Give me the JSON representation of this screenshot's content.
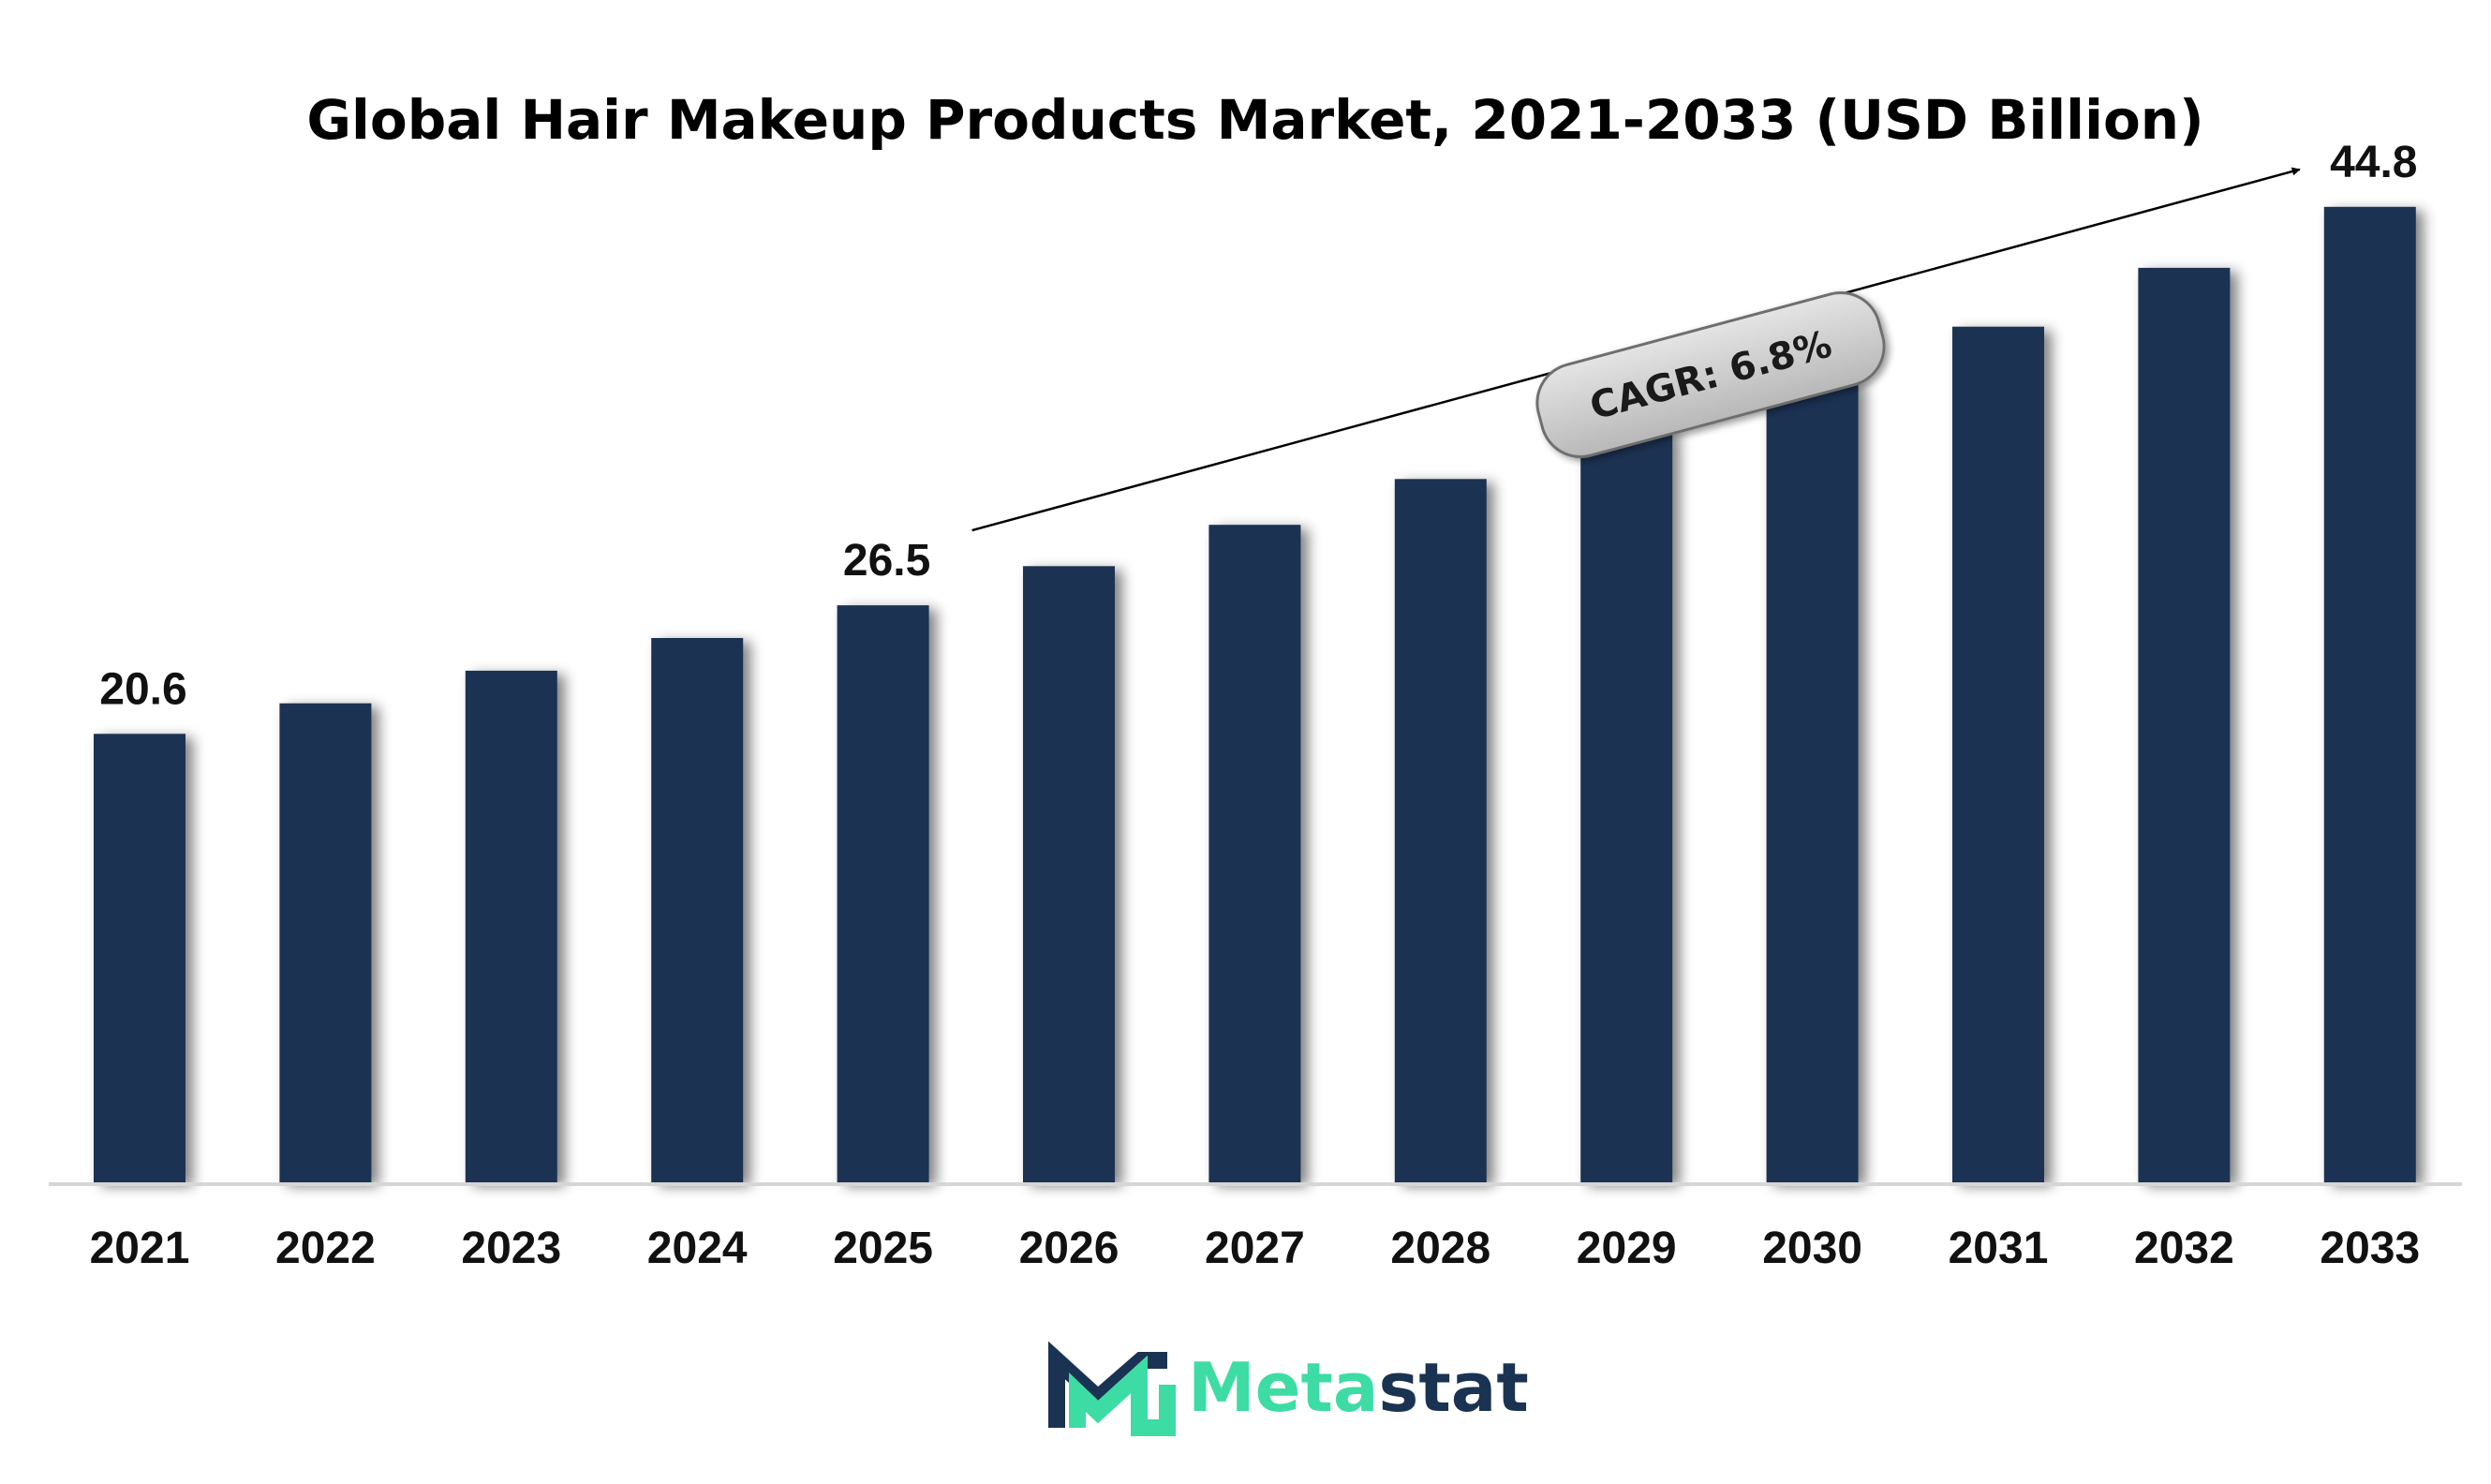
{
  "chart_data": {
    "type": "bar",
    "title": "Global Hair Makeup Products Market, 2021-2033 (USD Billion)",
    "categories": [
      "2021",
      "2022",
      "2023",
      "2024",
      "2025",
      "2026",
      "2027",
      "2028",
      "2029",
      "2030",
      "2031",
      "2032",
      "2033"
    ],
    "values": [
      20.6,
      22.0,
      23.5,
      25.0,
      26.5,
      28.3,
      30.2,
      32.3,
      34.5,
      36.8,
      39.3,
      42.0,
      44.8
    ],
    "labeled_values": {
      "2021": "20.6",
      "2025": "26.5",
      "2033": "44.8"
    },
    "xlabel": "",
    "ylabel": "USD Billion",
    "ylim": [
      0,
      50
    ],
    "grid": false,
    "bar_color": "#1b3352",
    "annotation": {
      "text": "CAGR: 6.8%",
      "from_category": "2025",
      "to_category": "2033"
    }
  },
  "brand": {
    "name_part1": "Meta",
    "name_part2": "stat",
    "color_part1": "#3ddca4",
    "color_part2": "#1b3352"
  }
}
